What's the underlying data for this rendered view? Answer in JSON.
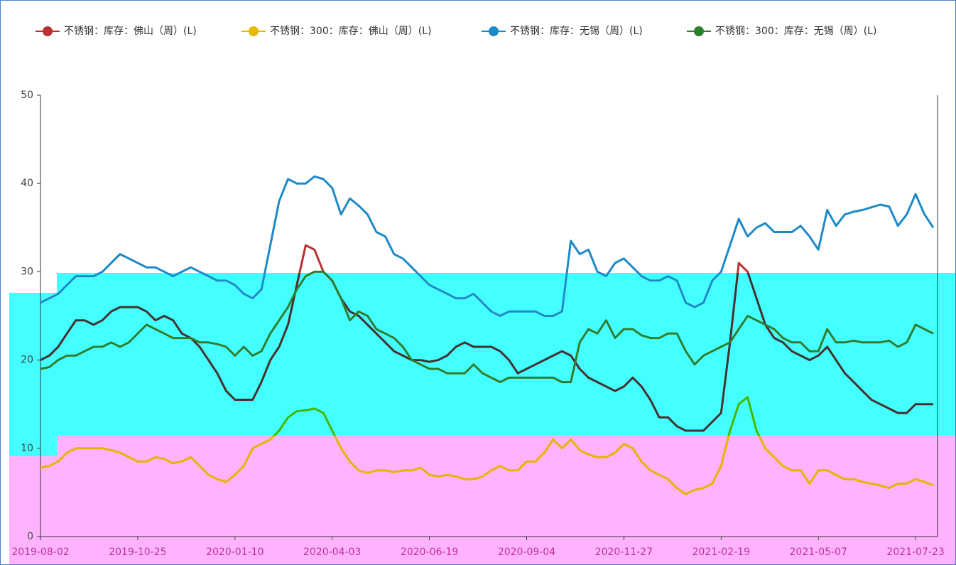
{
  "chart_data": {
    "type": "line",
    "categories": [
      "2019-08-02",
      null,
      null,
      null,
      null,
      null,
      null,
      null,
      null,
      null,
      null,
      "2019-10-25",
      null,
      null,
      null,
      null,
      null,
      null,
      null,
      null,
      null,
      null,
      "2020-01-10",
      null,
      null,
      null,
      null,
      null,
      null,
      null,
      null,
      null,
      null,
      "2020-04-03",
      null,
      null,
      null,
      null,
      null,
      null,
      null,
      null,
      null,
      null,
      "2020-06-19",
      null,
      null,
      null,
      null,
      null,
      null,
      null,
      null,
      null,
      null,
      "2020-09-04",
      null,
      null,
      null,
      null,
      null,
      null,
      null,
      null,
      null,
      null,
      "2020-11-27",
      null,
      null,
      null,
      null,
      null,
      null,
      null,
      null,
      null,
      null,
      "2021-02-19",
      null,
      null,
      null,
      null,
      null,
      null,
      null,
      null,
      null,
      null,
      "2021-05-07",
      null,
      null,
      null,
      null,
      null,
      null,
      null,
      null,
      null,
      null,
      "2021-07-23",
      null,
      null
    ],
    "series": [
      {
        "name": "不锈钢：库存：佛山（周）(L)",
        "color": "#b8312f",
        "values": [
          20,
          20.5,
          21.5,
          23,
          24.5,
          24.5,
          24,
          24.5,
          25.5,
          26,
          26,
          26,
          25.5,
          24.5,
          25,
          24.5,
          23,
          22.5,
          21.5,
          20,
          18.5,
          16.5,
          15.5,
          15.5,
          15.5,
          17.5,
          20,
          21.5,
          24,
          28.5,
          33,
          32.5,
          30,
          29,
          27,
          25.5,
          25,
          24,
          23,
          22,
          21,
          20.5,
          20,
          20,
          19.8,
          20,
          20.5,
          21.5,
          22,
          21.5,
          21.5,
          21.5,
          21,
          20,
          18.5,
          19,
          19.5,
          20,
          20.5,
          21,
          20.5,
          19,
          18,
          17.5,
          17,
          16.5,
          17,
          18,
          17,
          15.5,
          13.5,
          13.5,
          12.5,
          12,
          12,
          12,
          13,
          14,
          22,
          31,
          30,
          27,
          24,
          22.5,
          22,
          21,
          20.5,
          20,
          20.5,
          21.5,
          20,
          18.5,
          17.5,
          16.5,
          15.5,
          15,
          14.5,
          14,
          14,
          15,
          15,
          15
        ]
      },
      {
        "name": "不锈钢：300：库存：佛山（周）(L)",
        "color": "#e6b800",
        "values": [
          7.8,
          8,
          8.5,
          9.5,
          10,
          10,
          10,
          10,
          9.8,
          9.5,
          9,
          8.5,
          8.5,
          9,
          8.8,
          8.3,
          8.5,
          9,
          8,
          7,
          6.5,
          6.2,
          7,
          8,
          10,
          10.5,
          11,
          12,
          13.5,
          14.2,
          14.3,
          14.5,
          14,
          12,
          10,
          8.5,
          7.5,
          7.2,
          7.5,
          7.5,
          7.3,
          7.5,
          7.5,
          7.8,
          7,
          6.8,
          7,
          6.8,
          6.5,
          6.5,
          6.8,
          7.5,
          8,
          7.5,
          7.5,
          8.5,
          8.5,
          9.5,
          11,
          10,
          11,
          9.8,
          9.3,
          9,
          9,
          9.5,
          10.5,
          10,
          8.5,
          7.5,
          7,
          6.5,
          5.5,
          4.8,
          5.3,
          5.5,
          6,
          8,
          12,
          15,
          15.8,
          12,
          10,
          9,
          8,
          7.5,
          7.5,
          6,
          7.5,
          7.5,
          7,
          6.5,
          6.5,
          6.2,
          6,
          5.8,
          5.5,
          6,
          6,
          6.5,
          6.2,
          5.8
        ]
      },
      {
        "name": "不锈钢：库存：无锡（周）(L)",
        "color": "#1c8ac8",
        "values": [
          26.5,
          27,
          27.5,
          28.5,
          29.5,
          29.5,
          29.5,
          30,
          31,
          32,
          31.5,
          31,
          30.5,
          30.5,
          30,
          29.5,
          30,
          30.5,
          30,
          29.5,
          29,
          29,
          28.5,
          27.5,
          27,
          28,
          33,
          38,
          40.5,
          40,
          40,
          40.8,
          40.5,
          39.5,
          36.5,
          38.3,
          37.5,
          36.5,
          34.5,
          34,
          32,
          31.5,
          30.5,
          29.5,
          28.5,
          28,
          27.5,
          27,
          27,
          27.5,
          26.5,
          25.5,
          25,
          25.5,
          25.5,
          25.5,
          25.5,
          25,
          25,
          25.5,
          33.5,
          32,
          32.5,
          30,
          29.5,
          31,
          31.5,
          30.5,
          29.5,
          29,
          29,
          29.5,
          29,
          26.5,
          26,
          26.5,
          29,
          30,
          33,
          36,
          34,
          35,
          35.5,
          34.5,
          34.5,
          34.5,
          35.2,
          34,
          32.5,
          37,
          35.2,
          36.5,
          36.8,
          37,
          37.3,
          37.6,
          37.4,
          35.2,
          36.5,
          38.8,
          36.5,
          35
        ]
      },
      {
        "name": "不锈钢：300：库存：无锡（周）(L)",
        "color": "#2e7d2e",
        "values": [
          19,
          19.2,
          20,
          20.5,
          20.5,
          21,
          21.5,
          21.5,
          22,
          21.5,
          22,
          23,
          24,
          23.5,
          23,
          22.5,
          22.5,
          22.5,
          22,
          22,
          21.8,
          21.5,
          20.5,
          21.5,
          20.5,
          21,
          23,
          24.5,
          26,
          28,
          29.5,
          30,
          30,
          29,
          27,
          24.5,
          25.5,
          25,
          23.5,
          23,
          22.5,
          21.5,
          20,
          19.5,
          19,
          19,
          18.5,
          18.5,
          18.5,
          19.5,
          18.5,
          18,
          17.5,
          18,
          18,
          18,
          18,
          18,
          18,
          17.5,
          17.5,
          22,
          23.5,
          23,
          24.5,
          22.5,
          23.5,
          23.5,
          22.8,
          22.5,
          22.5,
          23,
          23,
          21,
          19.5,
          20.5,
          21,
          21.5,
          22,
          23.5,
          25,
          24.5,
          24,
          23.5,
          22.5,
          22,
          22,
          21,
          21,
          23.5,
          22,
          22,
          22.2,
          22,
          22,
          22,
          22.2,
          21.5,
          22,
          24,
          23.5,
          23
        ]
      }
    ],
    "ylim": [
      0,
      50
    ],
    "yticks": [
      0,
      10,
      20,
      30,
      40,
      50
    ]
  }
}
